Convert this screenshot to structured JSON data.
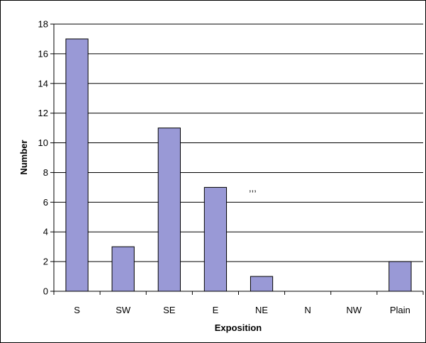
{
  "chart_data": {
    "type": "bar",
    "categories": [
      "S",
      "SW",
      "SE",
      "E",
      "NE",
      "N",
      "NW",
      "Plain"
    ],
    "values": [
      17,
      3,
      11,
      7,
      1,
      0,
      0,
      2
    ],
    "title": "",
    "xlabel": "Exposition",
    "ylabel": "Number",
    "ylim": [
      0,
      18
    ],
    "yticks": [
      "0",
      "2",
      "4",
      "6",
      "8",
      "10",
      "12",
      "14",
      "16",
      "18"
    ],
    "grid": true,
    "legend": "none",
    "annotation": ",,,",
    "bar_color": "#9999d6",
    "bar_edge_color": "#000000"
  }
}
